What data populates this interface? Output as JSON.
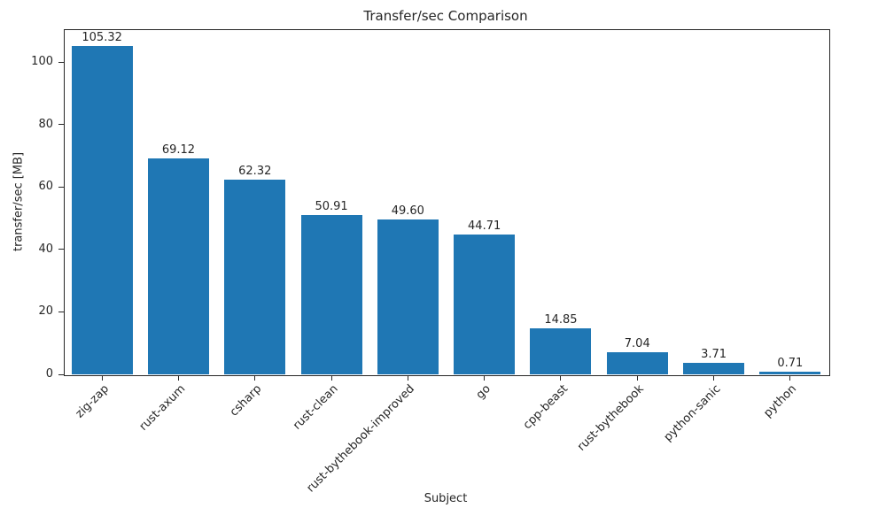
{
  "chart_data": {
    "type": "bar",
    "title": "Transfer/sec Comparison",
    "xlabel": "Subject",
    "ylabel": "transfer/sec [MB]",
    "categories": [
      "zig-zap",
      "rust-axum",
      "csharp",
      "rust-clean",
      "rust-bythebook-improved",
      "go",
      "cpp-beast",
      "rust-bythebook",
      "python-sanic",
      "python"
    ],
    "values": [
      105.32,
      69.12,
      62.32,
      50.91,
      49.6,
      44.71,
      14.85,
      7.04,
      3.71,
      0.71
    ],
    "yticks": [
      0,
      20,
      40,
      60,
      80,
      100
    ],
    "ylim": [
      0,
      110.59
    ],
    "bar_color": "#1f77b4",
    "grid": false,
    "legend": "none",
    "xtick_rotation": 45
  }
}
